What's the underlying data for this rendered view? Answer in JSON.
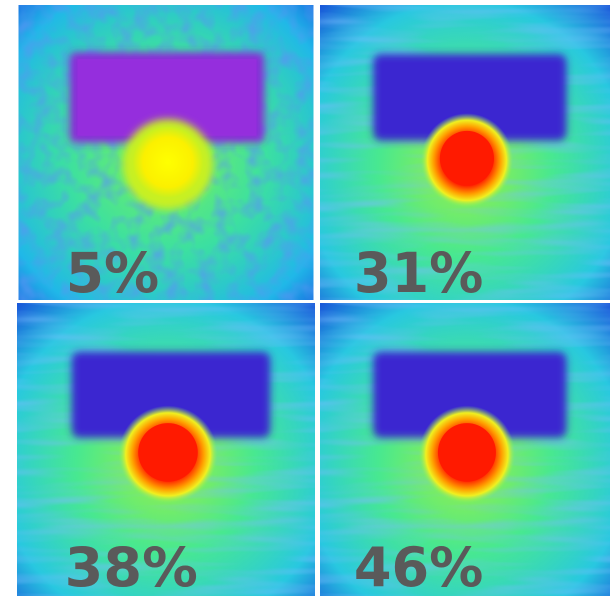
{
  "panels": [
    {
      "label": "5%"
    },
    {
      "label": "31%"
    },
    {
      "label": "38%"
    },
    {
      "label": "46%"
    }
  ]
}
